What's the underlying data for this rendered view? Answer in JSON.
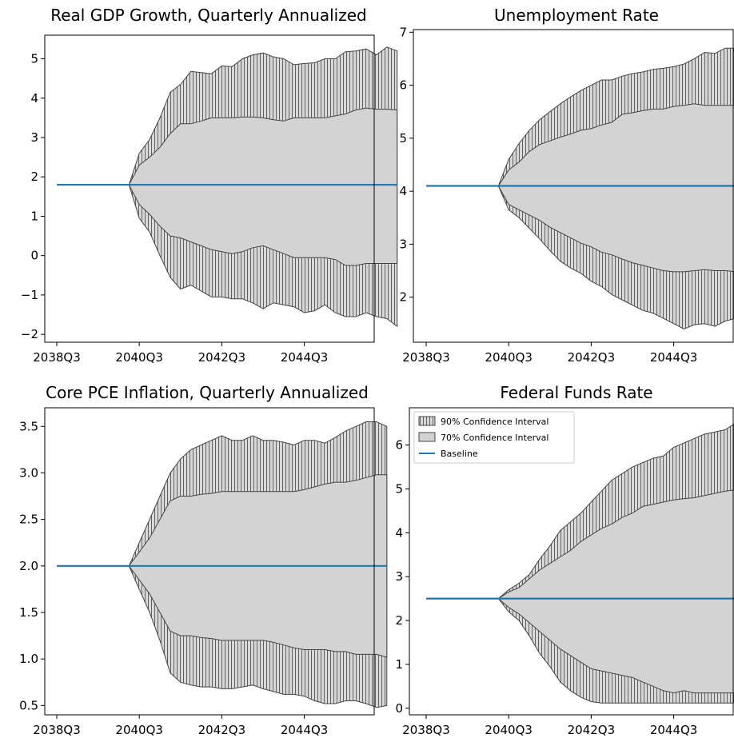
{
  "figure": {
    "x_tick_labels": [
      "2038Q3",
      "2040Q3",
      "2042Q3",
      "2044Q3"
    ],
    "x_tick_quarters": [
      0,
      8,
      16,
      24
    ],
    "n_quarters": 36,
    "legend": {
      "items": [
        {
          "label": "90% Confidence Interval",
          "kind": "hatched"
        },
        {
          "label": "70% Confidence Interval",
          "kind": "solid"
        },
        {
          "label": "Baseline",
          "kind": "line"
        }
      ]
    }
  },
  "colors": {
    "band70": "#d3d3d3",
    "band90_fill": "#d8d8d8",
    "hatch": "#555555",
    "baseline": "#1f77b4",
    "edge": "#444444"
  },
  "chart_data": [
    {
      "type": "area",
      "title": "Real GDP Growth, Quarterly Annualized",
      "xlabel": "",
      "ylabel": "",
      "ylim": [
        -2.2,
        5.6
      ],
      "y_ticks": [
        -2,
        -1,
        0,
        1,
        2,
        3,
        4,
        5
      ],
      "y_tick_labels": [
        "−2",
        "−1",
        "0",
        "1",
        "2",
        "3",
        "4",
        "5"
      ],
      "baseline": 1.8,
      "series": [
        {
          "name": "90% Confidence Interval",
          "upper": [
            1.8,
            1.8,
            1.8,
            1.8,
            1.8,
            1.8,
            1.8,
            1.8,
            2.6,
            2.95,
            3.5,
            4.15,
            4.35,
            4.68,
            4.65,
            4.62,
            4.82,
            4.8,
            5.0,
            5.1,
            5.15,
            5.05,
            5.0,
            4.85,
            4.88,
            4.9,
            5.0,
            5.0,
            5.18,
            5.2,
            5.25,
            5.1,
            5.3,
            5.2
          ],
          "lower": [
            1.8,
            1.8,
            1.8,
            1.8,
            1.8,
            1.8,
            1.8,
            1.8,
            0.95,
            0.6,
            0.0,
            -0.55,
            -0.85,
            -0.75,
            -0.9,
            -1.05,
            -1.05,
            -1.1,
            -1.1,
            -1.2,
            -1.35,
            -1.2,
            -1.25,
            -1.3,
            -1.45,
            -1.4,
            -1.25,
            -1.45,
            -1.55,
            -1.55,
            -1.45,
            -1.55,
            -1.6,
            -1.8
          ]
        },
        {
          "name": "70% Confidence Interval",
          "upper": [
            1.8,
            1.8,
            1.8,
            1.8,
            1.8,
            1.8,
            1.8,
            1.8,
            2.3,
            2.5,
            2.75,
            3.1,
            3.35,
            3.35,
            3.42,
            3.5,
            3.5,
            3.5,
            3.52,
            3.52,
            3.5,
            3.45,
            3.42,
            3.5,
            3.5,
            3.5,
            3.5,
            3.55,
            3.6,
            3.7,
            3.75,
            3.72,
            3.72,
            3.7
          ],
          "lower": [
            1.8,
            1.8,
            1.8,
            1.8,
            1.8,
            1.8,
            1.8,
            1.8,
            1.3,
            1.05,
            0.75,
            0.5,
            0.45,
            0.35,
            0.25,
            0.15,
            0.1,
            0.05,
            0.1,
            0.2,
            0.25,
            0.15,
            0.05,
            -0.05,
            -0.05,
            -0.05,
            -0.05,
            -0.1,
            -0.25,
            -0.25,
            -0.2,
            -0.2,
            -0.2,
            -0.2
          ]
        }
      ]
    },
    {
      "type": "area",
      "title": "Unemployment Rate",
      "xlabel": "",
      "ylabel": "",
      "ylim": [
        1.15,
        7.05
      ],
      "y_ticks": [
        2,
        3,
        4,
        5,
        6,
        7
      ],
      "y_tick_labels": [
        "2",
        "3",
        "4",
        "5",
        "6",
        "7"
      ],
      "baseline": 4.1,
      "series": [
        {
          "name": "90% Confidence Interval",
          "upper": [
            4.1,
            4.1,
            4.1,
            4.1,
            4.1,
            4.1,
            4.1,
            4.1,
            4.6,
            4.9,
            5.15,
            5.35,
            5.5,
            5.65,
            5.78,
            5.9,
            6.0,
            6.1,
            6.1,
            6.17,
            6.22,
            6.25,
            6.3,
            6.32,
            6.35,
            6.4,
            6.5,
            6.62,
            6.6,
            6.7,
            6.7,
            6.72,
            6.75,
            6.7,
            6.4
          ],
          "lower": [
            4.1,
            4.1,
            4.1,
            4.1,
            4.1,
            4.1,
            4.1,
            4.1,
            3.65,
            3.5,
            3.3,
            3.1,
            2.88,
            2.68,
            2.55,
            2.45,
            2.3,
            2.2,
            2.05,
            1.95,
            1.85,
            1.75,
            1.7,
            1.6,
            1.5,
            1.4,
            1.48,
            1.5,
            1.45,
            1.55,
            1.6,
            1.4,
            1.45,
            1.45,
            1.5
          ]
        },
        {
          "name": "70% Confidence Interval",
          "upper": [
            4.1,
            4.1,
            4.1,
            4.1,
            4.1,
            4.1,
            4.1,
            4.1,
            4.4,
            4.55,
            4.75,
            4.88,
            4.95,
            5.02,
            5.08,
            5.15,
            5.18,
            5.25,
            5.3,
            5.45,
            5.48,
            5.52,
            5.55,
            5.55,
            5.6,
            5.62,
            5.65,
            5.62,
            5.62,
            5.62,
            5.62,
            5.6,
            5.65,
            5.7,
            5.75
          ],
          "lower": [
            4.1,
            4.1,
            4.1,
            4.1,
            4.1,
            4.1,
            4.1,
            4.1,
            3.75,
            3.65,
            3.55,
            3.45,
            3.32,
            3.22,
            3.12,
            3.02,
            2.95,
            2.85,
            2.8,
            2.72,
            2.65,
            2.6,
            2.55,
            2.5,
            2.48,
            2.48,
            2.5,
            2.52,
            2.5,
            2.5,
            2.48,
            2.48,
            2.48,
            2.45,
            2.45
          ]
        }
      ]
    },
    {
      "type": "area",
      "title": "Core PCE Inflation, Quarterly Annualized",
      "xlabel": "",
      "ylabel": "",
      "ylim": [
        0.4,
        3.7
      ],
      "y_ticks": [
        0.5,
        1.0,
        1.5,
        2.0,
        2.5,
        3.0,
        3.5
      ],
      "y_tick_labels": [
        "0.5",
        "1.0",
        "1.5",
        "2.0",
        "2.5",
        "3.0",
        "3.5"
      ],
      "baseline": 2.0,
      "series": [
        {
          "name": "90% Confidence Interval",
          "upper": [
            2.0,
            2.0,
            2.0,
            2.0,
            2.0,
            2.0,
            2.0,
            2.0,
            2.25,
            2.5,
            2.75,
            3.0,
            3.15,
            3.25,
            3.3,
            3.35,
            3.4,
            3.35,
            3.35,
            3.4,
            3.35,
            3.35,
            3.33,
            3.3,
            3.35,
            3.35,
            3.32,
            3.38,
            3.45,
            3.5,
            3.55,
            3.55,
            3.5
          ],
          "lower": [
            2.0,
            2.0,
            2.0,
            2.0,
            2.0,
            2.0,
            2.0,
            2.0,
            1.75,
            1.5,
            1.2,
            0.85,
            0.75,
            0.72,
            0.7,
            0.7,
            0.68,
            0.68,
            0.7,
            0.72,
            0.68,
            0.65,
            0.62,
            0.62,
            0.6,
            0.55,
            0.52,
            0.52,
            0.55,
            0.55,
            0.52,
            0.48,
            0.5
          ]
        },
        {
          "name": "70% Confidence Interval",
          "upper": [
            2.0,
            2.0,
            2.0,
            2.0,
            2.0,
            2.0,
            2.0,
            2.0,
            2.15,
            2.3,
            2.5,
            2.7,
            2.75,
            2.75,
            2.77,
            2.78,
            2.8,
            2.8,
            2.8,
            2.8,
            2.8,
            2.8,
            2.8,
            2.8,
            2.82,
            2.85,
            2.88,
            2.9,
            2.9,
            2.92,
            2.95,
            2.98,
            2.98
          ],
          "lower": [
            2.0,
            2.0,
            2.0,
            2.0,
            2.0,
            2.0,
            2.0,
            2.0,
            1.85,
            1.7,
            1.5,
            1.3,
            1.25,
            1.25,
            1.23,
            1.22,
            1.2,
            1.2,
            1.2,
            1.2,
            1.2,
            1.18,
            1.15,
            1.12,
            1.1,
            1.1,
            1.1,
            1.08,
            1.08,
            1.05,
            1.05,
            1.05,
            1.02
          ]
        }
      ]
    },
    {
      "type": "area",
      "title": "Federal Funds Rate",
      "xlabel": "",
      "ylabel": "",
      "ylim": [
        -0.15,
        6.85
      ],
      "y_ticks": [
        0,
        1,
        2,
        3,
        4,
        5,
        6
      ],
      "y_tick_labels": [
        "0",
        "1",
        "2",
        "3",
        "4",
        "5",
        "6"
      ],
      "baseline": 2.5,
      "series": [
        {
          "name": "90% Confidence Interval",
          "upper": [
            2.5,
            2.5,
            2.5,
            2.5,
            2.5,
            2.5,
            2.5,
            2.5,
            2.7,
            2.85,
            3.05,
            3.4,
            3.7,
            4.05,
            4.25,
            4.45,
            4.7,
            4.95,
            5.2,
            5.35,
            5.5,
            5.6,
            5.7,
            5.75,
            5.95,
            6.05,
            6.15,
            6.25,
            6.3,
            6.35,
            6.5,
            6.55,
            6.6,
            6.65,
            6.65
          ],
          "lower": [
            2.5,
            2.5,
            2.5,
            2.5,
            2.5,
            2.5,
            2.5,
            2.5,
            2.2,
            2.0,
            1.65,
            1.25,
            0.95,
            0.6,
            0.4,
            0.25,
            0.15,
            0.12,
            0.12,
            0.12,
            0.12,
            0.12,
            0.12,
            0.12,
            0.12,
            0.12,
            0.12,
            0.12,
            0.12,
            0.12,
            0.12,
            0.12,
            0.12,
            0.12,
            0.12
          ]
        },
        {
          "name": "70% Confidence Interval",
          "upper": [
            2.5,
            2.5,
            2.5,
            2.5,
            2.5,
            2.5,
            2.5,
            2.5,
            2.65,
            2.75,
            2.95,
            3.15,
            3.3,
            3.45,
            3.6,
            3.8,
            3.95,
            4.1,
            4.2,
            4.35,
            4.45,
            4.6,
            4.65,
            4.7,
            4.75,
            4.78,
            4.8,
            4.85,
            4.9,
            4.95,
            4.98,
            4.98,
            4.95,
            4.95,
            4.92
          ],
          "lower": [
            2.5,
            2.5,
            2.5,
            2.5,
            2.5,
            2.5,
            2.5,
            2.5,
            2.3,
            2.15,
            1.95,
            1.75,
            1.55,
            1.35,
            1.2,
            1.05,
            0.9,
            0.85,
            0.8,
            0.75,
            0.7,
            0.6,
            0.5,
            0.4,
            0.35,
            0.4,
            0.35,
            0.35,
            0.35,
            0.35,
            0.35,
            0.35,
            0.35,
            0.35,
            0.35
          ]
        }
      ]
    }
  ]
}
